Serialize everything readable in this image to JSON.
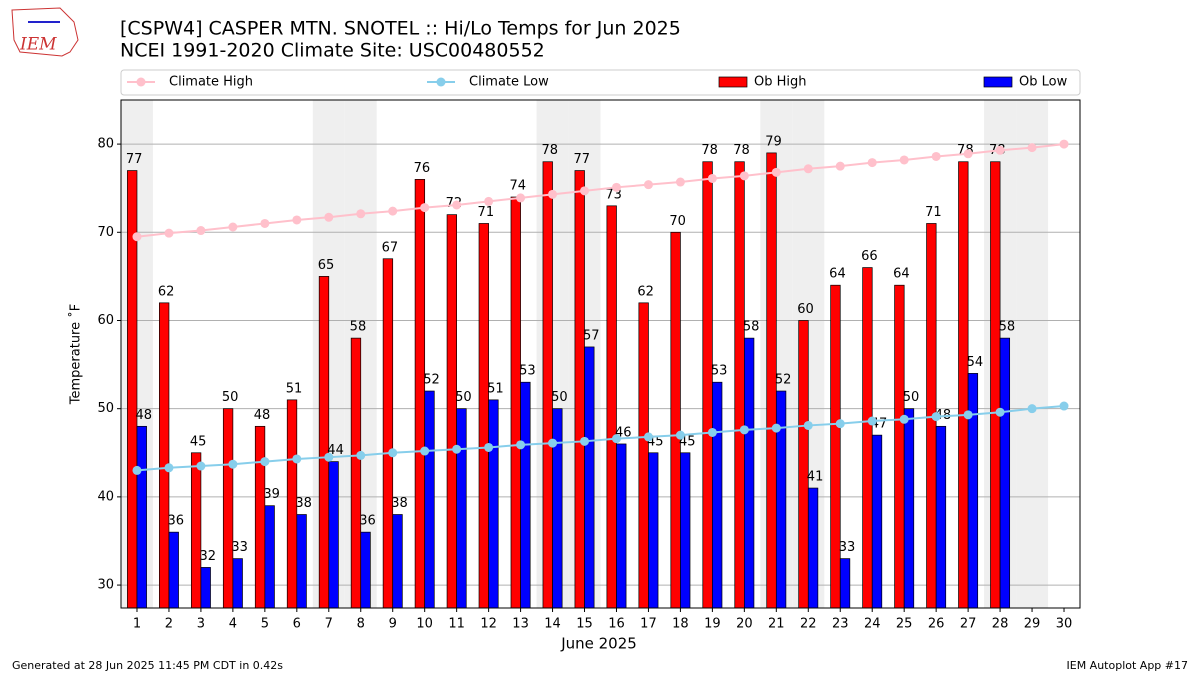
{
  "chart_data": {
    "type": "bar",
    "title": "[CSPW4] CASPER MTN. SNOTEL :: Hi/Lo Temps for Jun 2025",
    "subtitle": "NCEI 1991-2020 Climate Site: USC00480552",
    "logo": "IEM",
    "x_label": "June 2025",
    "y_label": "Temperature ˚F",
    "footer_left": "Generated at 28 Jun 2025 11:45 PM CDT in 0.42s",
    "footer_right": "IEM Autoplot App #17",
    "x": [
      1,
      2,
      3,
      4,
      5,
      6,
      7,
      8,
      9,
      10,
      11,
      12,
      13,
      14,
      15,
      16,
      17,
      18,
      19,
      20,
      21,
      22,
      23,
      24,
      25,
      26,
      27,
      28,
      29,
      30
    ],
    "xlim": [
      0.5,
      30.5
    ],
    "xticks": [
      1,
      2,
      3,
      4,
      5,
      6,
      7,
      8,
      9,
      10,
      11,
      12,
      13,
      14,
      15,
      16,
      17,
      18,
      19,
      20,
      21,
      22,
      23,
      24,
      25,
      26,
      27,
      28,
      29,
      30
    ],
    "ylim": [
      27.4,
      85
    ],
    "yticks": [
      30,
      40,
      50,
      60,
      70,
      80
    ],
    "grid": true,
    "legend": "top",
    "series": [
      {
        "name": "Climate High",
        "type": "line",
        "color": "#ffc0cb",
        "values": [
          69.5,
          69.9,
          70.2,
          70.6,
          71.0,
          71.4,
          71.7,
          72.1,
          72.4,
          72.8,
          73.1,
          73.5,
          73.9,
          74.3,
          74.7,
          75.1,
          75.4,
          75.7,
          76.1,
          76.4,
          76.8,
          77.2,
          77.5,
          77.9,
          78.2,
          78.6,
          78.9,
          79.3,
          79.6,
          80.0
        ]
      },
      {
        "name": "Climate Low",
        "type": "line",
        "color": "#87ceeb",
        "values": [
          43.0,
          43.3,
          43.5,
          43.7,
          44.0,
          44.3,
          44.5,
          44.7,
          45.0,
          45.2,
          45.4,
          45.6,
          45.9,
          46.1,
          46.3,
          46.6,
          46.8,
          47.0,
          47.3,
          47.6,
          47.8,
          48.1,
          48.3,
          48.6,
          48.8,
          49.1,
          49.3,
          49.6,
          50.0,
          50.3
        ]
      },
      {
        "name": "Ob High",
        "type": "bar",
        "color": "#ff0000",
        "values": [
          77,
          62,
          45,
          50,
          48,
          51,
          65,
          58,
          67,
          76,
          72,
          71,
          74,
          78,
          77,
          73,
          62,
          70,
          78,
          78,
          79,
          60,
          64,
          66,
          64,
          71,
          78,
          78,
          null,
          null
        ]
      },
      {
        "name": "Ob Low",
        "type": "bar",
        "color": "#0000ff",
        "values": [
          48,
          36,
          32,
          33,
          39,
          38,
          44,
          36,
          38,
          52,
          50,
          51,
          53,
          50,
          57,
          46,
          45,
          45,
          53,
          58,
          52,
          41,
          33,
          47,
          50,
          48,
          54,
          58,
          null,
          null
        ]
      }
    ]
  }
}
